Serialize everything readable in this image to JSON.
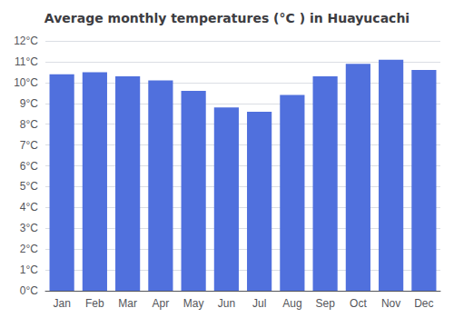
{
  "chart_data": {
    "type": "bar",
    "title": "Average monthly temperatures (°C ) in Huayucachi",
    "categories": [
      "Jan",
      "Feb",
      "Mar",
      "Apr",
      "May",
      "Jun",
      "Jul",
      "Aug",
      "Sep",
      "Oct",
      "Nov",
      "Dec"
    ],
    "values": [
      10.4,
      10.5,
      10.3,
      10.1,
      9.6,
      8.8,
      8.6,
      9.4,
      10.3,
      10.9,
      11.1,
      10.6
    ],
    "ylim": [
      0,
      12
    ],
    "yticks": [
      {
        "value": 0,
        "label": "0°C"
      },
      {
        "value": 1,
        "label": "1°C"
      },
      {
        "value": 2,
        "label": "2°C"
      },
      {
        "value": 3,
        "label": "3°C"
      },
      {
        "value": 4,
        "label": "4°C"
      },
      {
        "value": 5,
        "label": "5°C"
      },
      {
        "value": 6,
        "label": "6°C"
      },
      {
        "value": 7,
        "label": "7°C"
      },
      {
        "value": 8,
        "label": "8°C"
      },
      {
        "value": 9,
        "label": "9°C"
      },
      {
        "value": 10,
        "label": "10°C"
      },
      {
        "value": 11,
        "label": "11°C"
      },
      {
        "value": 12,
        "label": "12°C"
      }
    ],
    "grid": true
  }
}
